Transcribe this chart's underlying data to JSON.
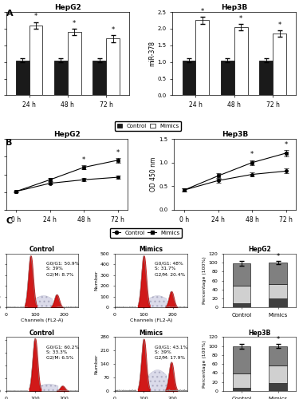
{
  "panel_A": {
    "HepG2": {
      "timepoints": [
        "24 h",
        "48 h",
        "72 h"
      ],
      "control_values": [
        1.05,
        1.05,
        1.05
      ],
      "control_errors": [
        0.05,
        0.05,
        0.05
      ],
      "mimics_values": [
        2.1,
        1.9,
        1.7
      ],
      "mimics_errors": [
        0.1,
        0.1,
        0.1
      ]
    },
    "Hep3B": {
      "timepoints": [
        "24 h",
        "48 h",
        "72 h"
      ],
      "control_values": [
        1.05,
        1.05,
        1.05
      ],
      "control_errors": [
        0.05,
        0.05,
        0.05
      ],
      "mimics_values": [
        2.25,
        2.05,
        1.85
      ],
      "mimics_errors": [
        0.1,
        0.1,
        0.1
      ]
    }
  },
  "panel_B": {
    "HepG2": {
      "timepoints": [
        "0 h",
        "24 h",
        "48 h",
        "72 h"
      ],
      "control_values": [
        0.52,
        0.75,
        0.85,
        0.92
      ],
      "control_errors": [
        0.03,
        0.04,
        0.04,
        0.05
      ],
      "mimics_values": [
        0.52,
        0.85,
        1.2,
        1.4
      ],
      "mimics_errors": [
        0.03,
        0.05,
        0.06,
        0.07
      ]
    },
    "Hep3B": {
      "timepoints": [
        "0 h",
        "24 h",
        "48 h",
        "72 h"
      ],
      "control_values": [
        0.42,
        0.62,
        0.75,
        0.82
      ],
      "control_errors": [
        0.03,
        0.04,
        0.04,
        0.05
      ],
      "mimics_values": [
        0.42,
        0.72,
        1.0,
        1.2
      ],
      "mimics_errors": [
        0.03,
        0.05,
        0.05,
        0.06
      ]
    }
  },
  "panel_C": {
    "HepG2": {
      "control_text": "G0/G1: 50.9%\nS: 39%\nG2/M: 8.7%",
      "mimics_text": "G0/G1: 48%\nS: 31.7%\nG2/M: 20.4%",
      "bar_control": [
        50.9,
        39.0,
        8.7
      ],
      "bar_mimics": [
        48.0,
        31.7,
        20.4
      ],
      "control_errors": [
        5,
        3,
        2
      ],
      "mimics_errors": [
        4,
        3,
        2
      ]
    },
    "Hep3B": {
      "control_text": "G0/G1: 60.2%\nS: 33.3%\nG2/M: 6.5%",
      "mimics_text": "G0/G1: 43.1%\nS: 39%\nG2/M: 17.9%",
      "bar_control": [
        60.2,
        33.3,
        6.5
      ],
      "bar_mimics": [
        43.1,
        39.0,
        17.9
      ],
      "control_errors": [
        5,
        3,
        1
      ],
      "mimics_errors": [
        4,
        3,
        2
      ]
    }
  },
  "colors": {
    "control_bar": "#1a1a1a",
    "mimics_bar": "#ffffff",
    "g0g1_color": "#808080",
    "s_color": "#d0d0d0",
    "g2m_color": "#404040",
    "flow_red": "#cc0000",
    "flow_blue_fill": "#aaaacc",
    "flow_line": "#555555"
  }
}
